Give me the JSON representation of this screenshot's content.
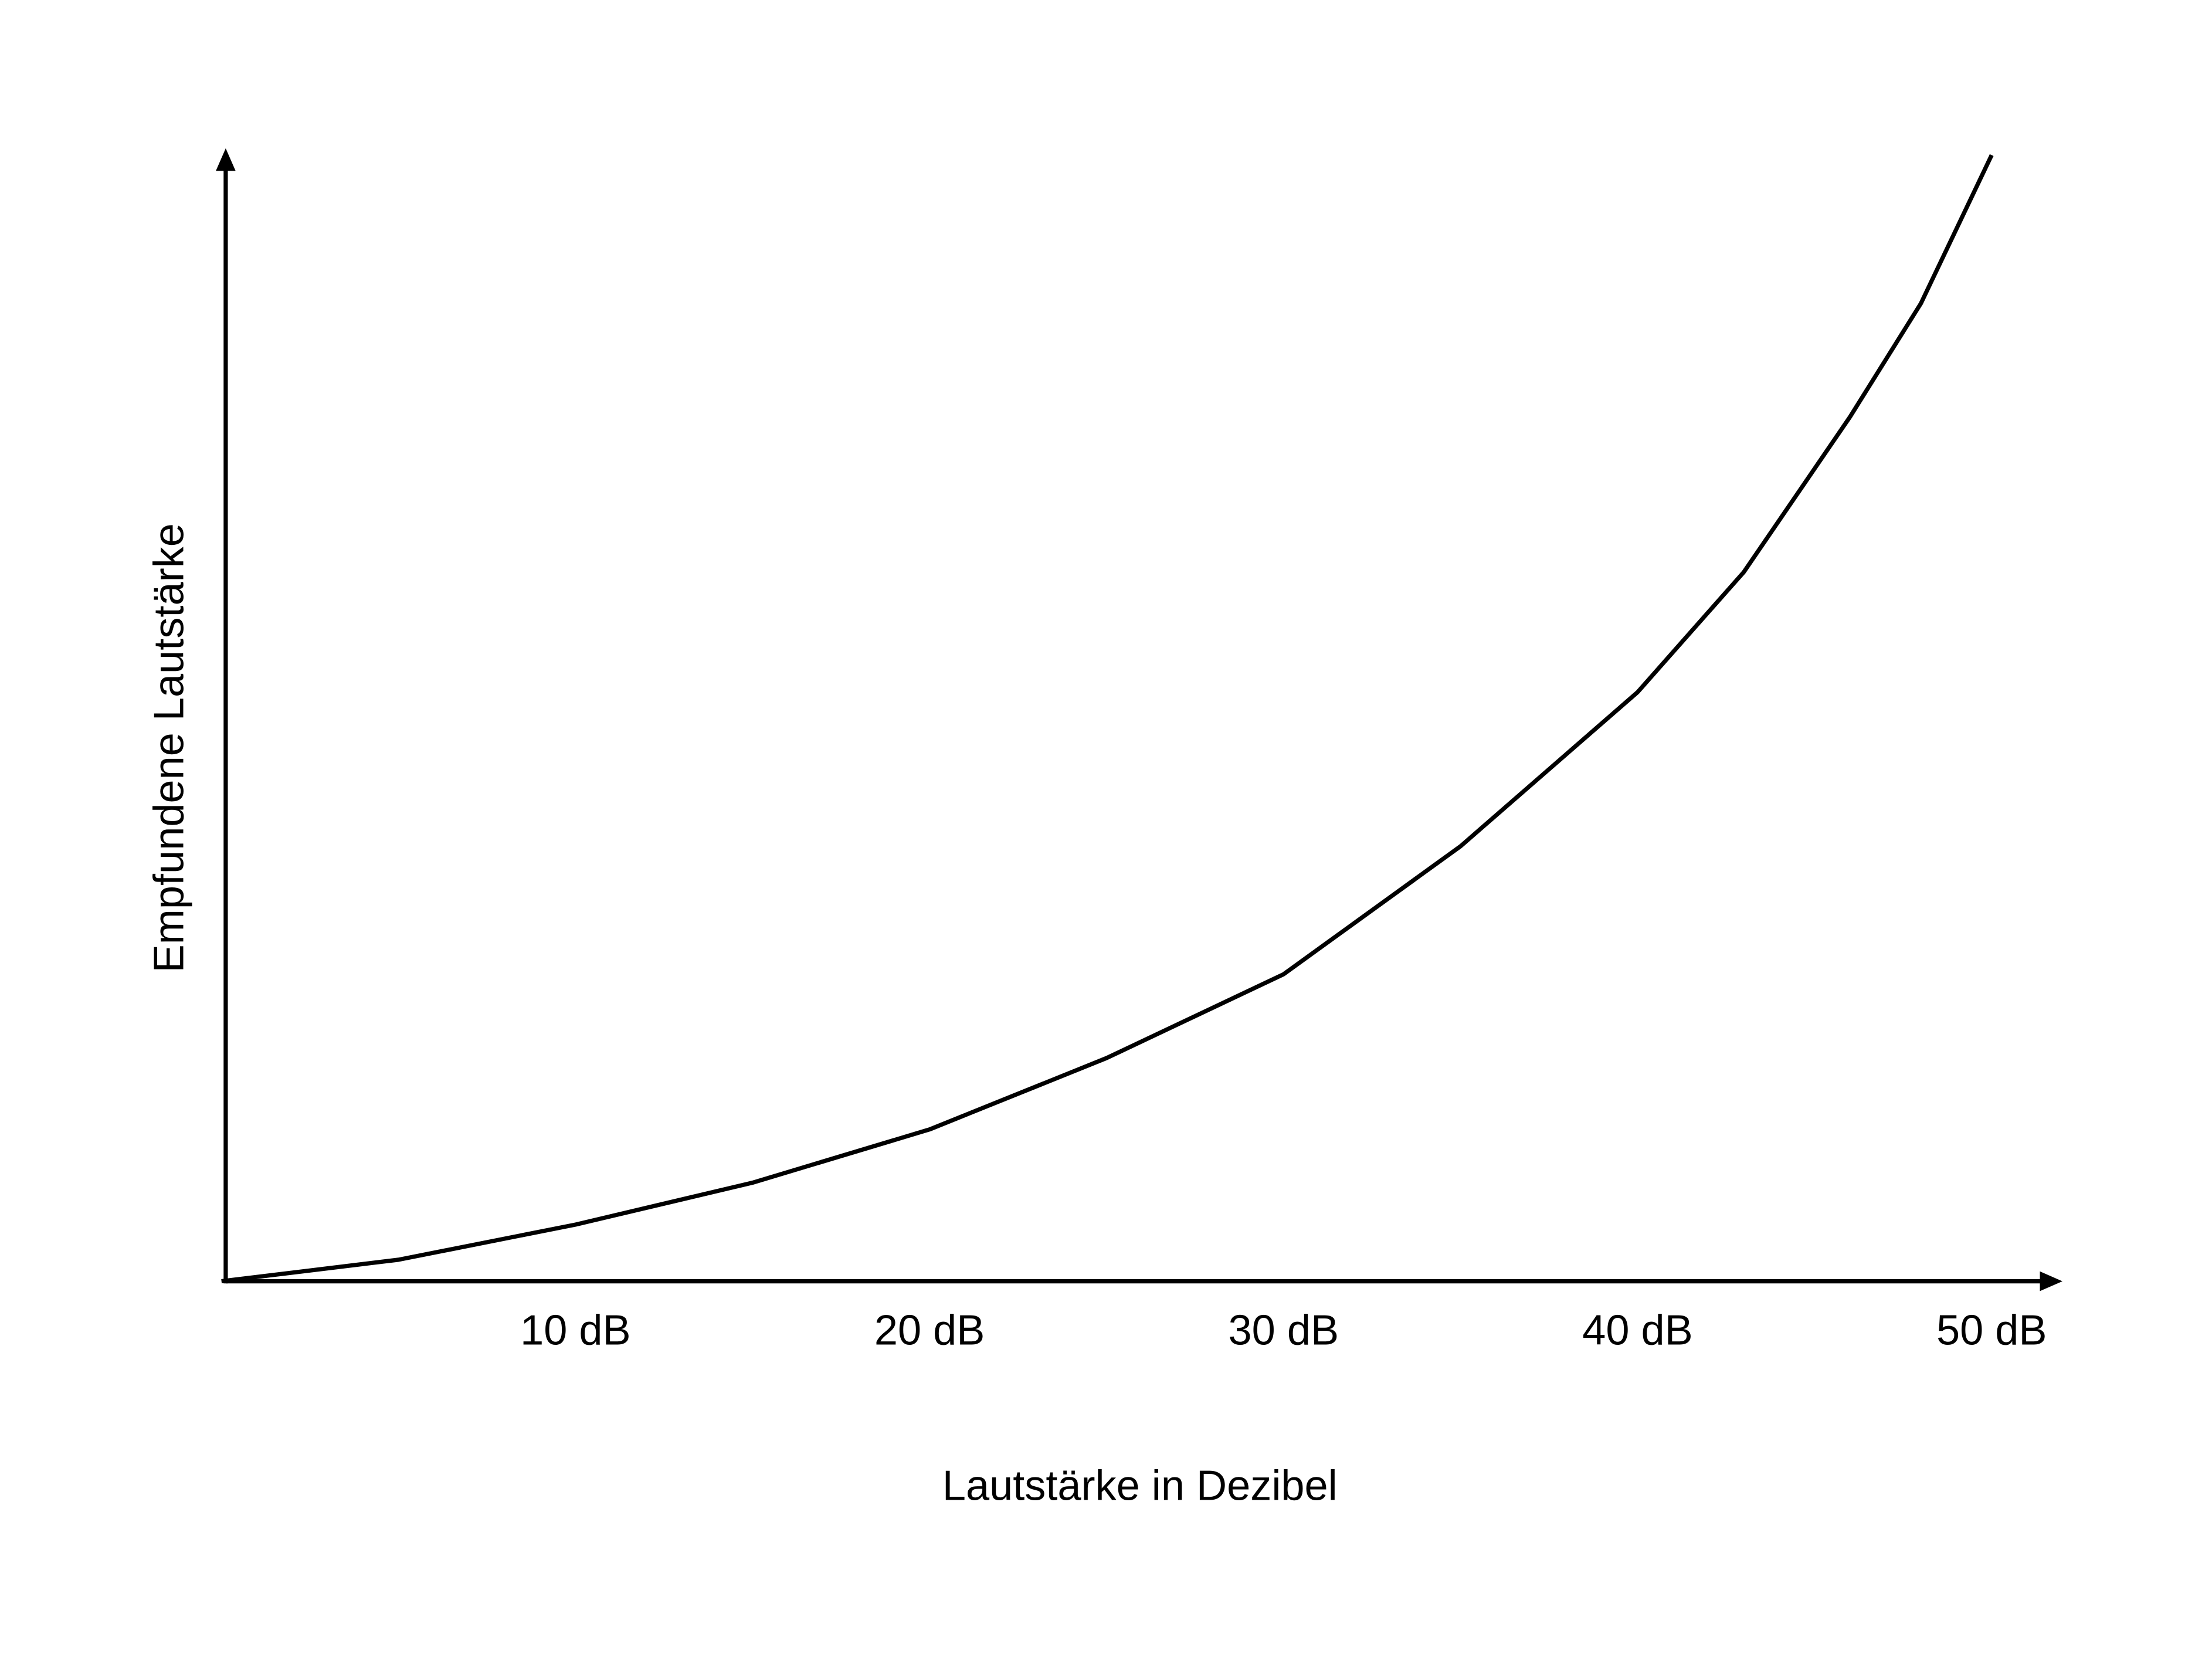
{
  "chart_data": {
    "type": "line",
    "x_label": "Lautstärke in Dezibel",
    "y_label": "Empfundene Lautstärke",
    "x": [
      0,
      5,
      10,
      15,
      20,
      25,
      30,
      35,
      40,
      43,
      46,
      48,
      50
    ],
    "values": [
      0,
      1.9,
      5,
      8.7,
      13.4,
      19.7,
      27.1,
      38.4,
      52,
      62.6,
      76.3,
      86.3,
      99.4
    ],
    "color": "#000000",
    "xlim": [
      0,
      52
    ],
    "ylim": [
      0,
      100
    ],
    "xticks": [
      {
        "value": 10,
        "label": "10 dB"
      },
      {
        "value": 20,
        "label": "20 dB"
      },
      {
        "value": 30,
        "label": "30 dB"
      },
      {
        "value": 40,
        "label": "40 dB"
      },
      {
        "value": 50,
        "label": "50 dB"
      }
    ],
    "grid": false
  }
}
